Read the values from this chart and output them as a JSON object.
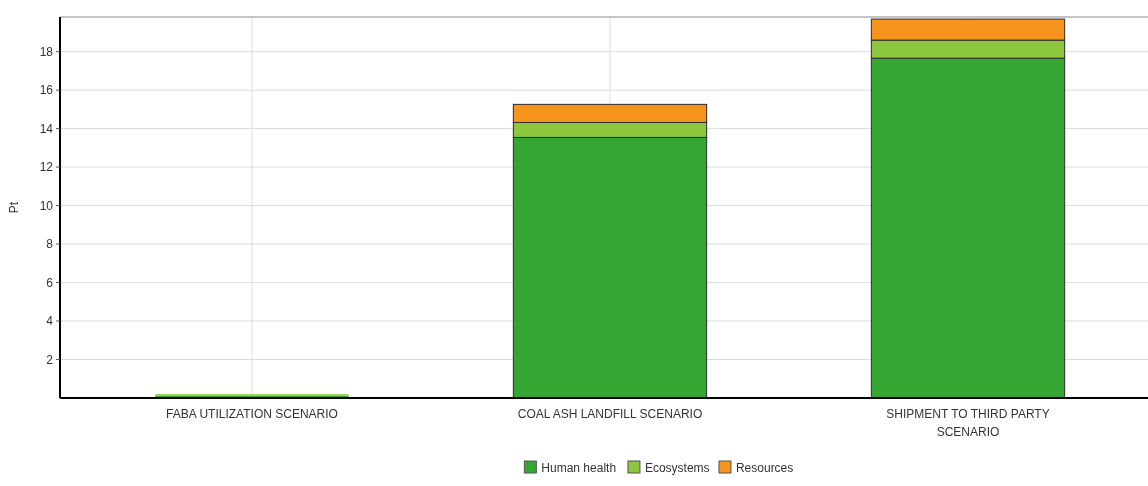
{
  "chart_data": {
    "type": "bar",
    "ylabel": "Pt",
    "categories": [
      "FABA UTILIZATION SCENARIO",
      "COAL ASH LANDFILL SCENARIO",
      "SHIPMENT TO THIRD PARTY SCENARIO"
    ],
    "stacked": true,
    "ylim": [
      0,
      19.8
    ],
    "yticks": [
      2,
      4,
      6,
      8,
      10,
      12,
      14,
      16,
      18
    ],
    "grid": true,
    "legend": "bottom",
    "series": [
      {
        "name": "Human health",
        "color": "#36a632",
        "values": [
          0.12,
          13.54,
          17.66
        ]
      },
      {
        "name": "Ecosystems",
        "color": "#8dc63f",
        "values": [
          0.08,
          0.78,
          0.94
        ]
      },
      {
        "name": "Resources",
        "color": "#f7941d",
        "values": [
          null,
          0.94,
          1.09
        ]
      }
    ]
  }
}
